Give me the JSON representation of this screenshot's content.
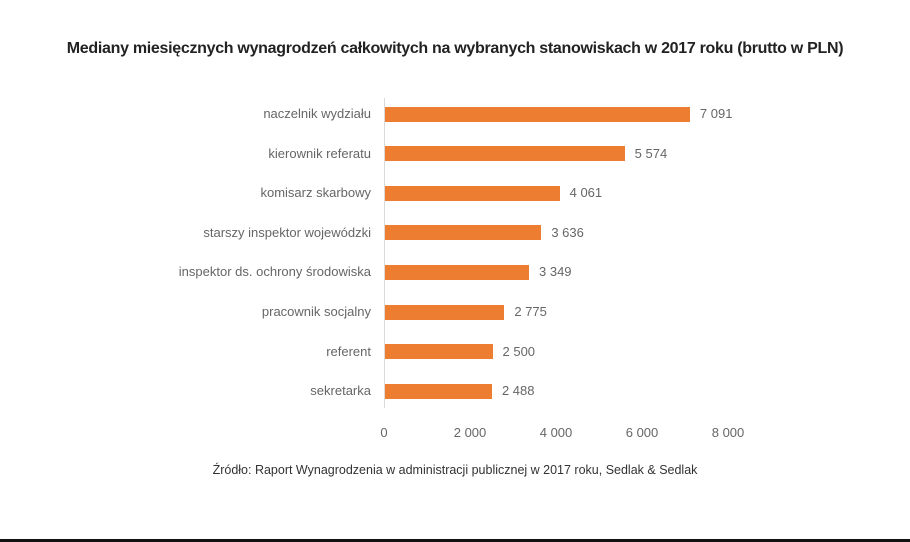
{
  "chart_data": {
    "type": "bar",
    "orientation": "horizontal",
    "title": "Mediany miesięcznych wynagrodzeń całkowitych na wybranych stanowiskach w 2017 roku (brutto w PLN)",
    "categories": [
      "naczelnik wydziału",
      "kierownik referatu",
      "komisarz skarbowy",
      "starszy inspektor wojewódzki",
      "inspektor ds. ochrony środowiska",
      "pracownik socjalny",
      "referent",
      "sekretarka"
    ],
    "values": [
      7091,
      5574,
      4061,
      3636,
      3349,
      2775,
      2500,
      2488
    ],
    "value_labels": [
      "7 091",
      "5 574",
      "4 061",
      "3 636",
      "3 349",
      "2 775",
      "2 500",
      "2 488"
    ],
    "xlabel": "",
    "ylabel": "",
    "xlim": [
      0,
      8000
    ],
    "x_ticks": [
      "0",
      "2 000",
      "4 000",
      "6 000",
      "8 000"
    ],
    "bar_color": "#ed7d31",
    "grid": false,
    "legend": null,
    "source": "Źródło: Raport Wynagrodzenia w administracji publicznej w 2017 roku, Sedlak & Sedlak"
  }
}
